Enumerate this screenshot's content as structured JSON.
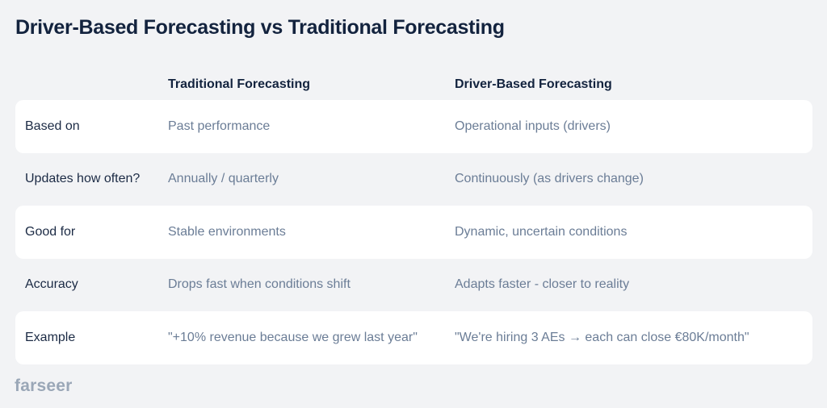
{
  "title": "Driver-Based Forecasting vs Traditional Forecasting",
  "table": {
    "headers": [
      "",
      "Traditional Forecasting",
      "Driver-Based Forecasting"
    ],
    "rows": [
      [
        "Based on",
        "Past performance",
        "Operational inputs (drivers)"
      ],
      [
        "Updates how often?",
        "Annually / quarterly",
        "Continuously (as drivers change)"
      ],
      [
        "Good for",
        "Stable environments",
        "Dynamic, uncertain conditions"
      ],
      [
        "Accuracy",
        "Drops fast when conditions shift",
        "Adapts faster - closer to reality"
      ],
      [
        "Example",
        "\"+10% revenue because we grew last year\"",
        "\"We're hiring 3 AEs → each can close €80K/month\""
      ]
    ]
  },
  "brand": {
    "logo_text": "farseer"
  },
  "colors": {
    "background": "#f2f3f5",
    "row_highlight": "#ffffff",
    "heading_text": "#13233e",
    "muted_text": "#6b7d96",
    "logo": "#9aa7b7"
  }
}
